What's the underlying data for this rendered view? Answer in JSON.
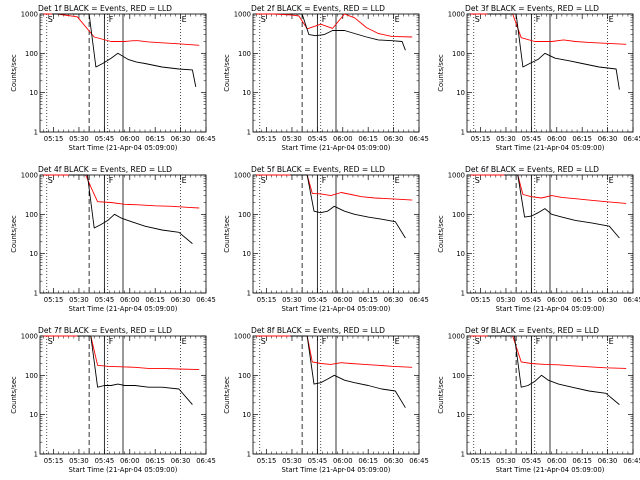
{
  "chart_data": [
    {
      "type": "line",
      "title": "Det 1f BLACK = Events, RED = LLD",
      "xlabel": "Start Time (21-Apr-04 05:09:00)",
      "ylabel": "Counts/sec",
      "x_ticks": [
        "05:15",
        "05:30",
        "05:45",
        "06:00",
        "06:15",
        "06:30",
        "06:45"
      ],
      "y_ticks": [
        "1",
        "10",
        "100",
        "1000"
      ],
      "ylim": [
        1,
        1000
      ],
      "y_scale": "log",
      "markers": [
        "S",
        "F",
        "E"
      ],
      "series": [
        {
          "name": "RED",
          "color": "#ff0000",
          "x": [
            0,
            3,
            8,
            20,
            30,
            40,
            48,
            53,
            56,
            62,
            70,
            80,
            92
          ],
          "y": [
            1000,
            1000,
            1000,
            850,
            260,
            200,
            200,
            210,
            210,
            195,
            185,
            175,
            160
          ]
        },
        {
          "name": "BLACK",
          "color": "#000000",
          "x": [
            5,
            20,
            27,
            31,
            35,
            40,
            44,
            50,
            55,
            60,
            70,
            80,
            88,
            90
          ],
          "y": [
            1000,
            1000,
            1000,
            45,
            55,
            75,
            100,
            70,
            60,
            55,
            45,
            40,
            38,
            14
          ]
        }
      ]
    },
    {
      "type": "line",
      "title": "Det 2f BLACK = Events, RED = LLD",
      "xlabel": "Start Time (21-Apr-04 05:09:00)",
      "ylabel": "Counts/sec",
      "x_ticks": [
        "05:15",
        "05:30",
        "05:45",
        "06:00",
        "06:15",
        "06:30",
        "06:45"
      ],
      "y_ticks": [
        "1",
        "10",
        "100",
        "1000"
      ],
      "ylim": [
        1,
        1000
      ],
      "y_scale": "log",
      "markers": [
        "S",
        "F",
        "E"
      ],
      "series": [
        {
          "name": "RED",
          "color": "#ff0000",
          "x": [
            0,
            10,
            20,
            25,
            30,
            38,
            45,
            52,
            58,
            65,
            72,
            80,
            92
          ],
          "y": [
            1000,
            1000,
            950,
            900,
            420,
            550,
            430,
            1000,
            800,
            450,
            320,
            270,
            260
          ]
        },
        {
          "name": "BLACK",
          "color": "#000000",
          "x": [
            20,
            27,
            31,
            35,
            40,
            45,
            52,
            58,
            65,
            72,
            80,
            86,
            88
          ],
          "y": [
            1000,
            1000,
            300,
            280,
            300,
            380,
            380,
            320,
            260,
            220,
            210,
            200,
            120
          ]
        }
      ]
    },
    {
      "type": "line",
      "title": "Det 3f BLACK = Events, RED = LLD",
      "xlabel": "Start Time (21-Apr-04 05:09:00)",
      "ylabel": "Counts/sec",
      "x_ticks": [
        "05:15",
        "05:30",
        "05:45",
        "06:00",
        "06:15",
        "06:30",
        "06:45"
      ],
      "y_ticks": [
        "1",
        "10",
        "100",
        "1000"
      ],
      "ylim": [
        1,
        1000
      ],
      "y_scale": "log",
      "markers": [
        "S",
        "F",
        "E"
      ],
      "series": [
        {
          "name": "RED",
          "color": "#ff0000",
          "x": [
            0,
            20,
            25,
            30,
            38,
            48,
            55,
            62,
            70,
            80,
            92
          ],
          "y": [
            1000,
            1000,
            1000,
            250,
            200,
            200,
            220,
            200,
            190,
            180,
            170
          ]
        },
        {
          "name": "BLACK",
          "color": "#000000",
          "x": [
            10,
            27,
            31,
            35,
            40,
            44,
            50,
            58,
            66,
            76,
            86,
            88
          ],
          "y": [
            1000,
            1000,
            45,
            55,
            70,
            100,
            75,
            65,
            55,
            45,
            40,
            12
          ]
        }
      ]
    },
    {
      "type": "line",
      "title": "Det 4f BLACK = Events, RED = LLD",
      "xlabel": "Start Time (21-Apr-04 05:09:00)",
      "ylabel": "Counts/sec",
      "x_ticks": [
        "05:15",
        "05:30",
        "05:45",
        "06:00",
        "06:15",
        "06:30",
        "06:45"
      ],
      "y_ticks": [
        "1",
        "10",
        "100",
        "1000"
      ],
      "ylim": [
        1,
        1000
      ],
      "y_scale": "log",
      "markers": [
        "S",
        "F",
        "E"
      ],
      "series": [
        {
          "name": "RED",
          "color": "#ff0000",
          "x": [
            0,
            20,
            25,
            29,
            32,
            40,
            48,
            56,
            66,
            76,
            86,
            92
          ],
          "y": [
            1000,
            1000,
            1000,
            400,
            210,
            200,
            180,
            175,
            165,
            160,
            150,
            145
          ]
        },
        {
          "name": "BLACK",
          "color": "#000000",
          "x": [
            15,
            26,
            30,
            34,
            38,
            42,
            46,
            52,
            60,
            70,
            80,
            88
          ],
          "y": [
            1000,
            1000,
            45,
            55,
            70,
            100,
            80,
            65,
            50,
            40,
            35,
            18
          ]
        }
      ]
    },
    {
      "type": "line",
      "title": "Det 5f BLACK = Events, RED = LLD",
      "xlabel": "Start Time (21-Apr-04 05:09:00)",
      "ylabel": "Counts/sec",
      "x_ticks": [
        "05:15",
        "05:30",
        "05:45",
        "06:00",
        "06:15",
        "06:30",
        "06:45"
      ],
      "y_ticks": [
        "1",
        "10",
        "100",
        "1000"
      ],
      "ylim": [
        1,
        1000
      ],
      "y_scale": "log",
      "markers": [
        "S",
        "F",
        "E"
      ],
      "series": [
        {
          "name": "RED",
          "color": "#ff0000",
          "x": [
            0,
            20,
            30,
            33,
            38,
            44,
            50,
            56,
            62,
            70,
            78,
            86,
            92
          ],
          "y": [
            1000,
            1000,
            1000,
            340,
            330,
            300,
            360,
            320,
            280,
            260,
            250,
            240,
            230
          ]
        },
        {
          "name": "BLACK",
          "color": "#000000",
          "x": [
            20,
            30,
            34,
            38,
            42,
            46,
            52,
            58,
            66,
            74,
            82,
            88
          ],
          "y": [
            1000,
            1000,
            120,
            110,
            120,
            160,
            120,
            100,
            85,
            75,
            65,
            25
          ]
        }
      ]
    },
    {
      "type": "line",
      "title": "Det 6f BLACK = Events, RED = LLD",
      "xlabel": "Start Time (21-Apr-04 05:09:00)",
      "ylabel": "Counts/sec",
      "x_ticks": [
        "05:15",
        "05:30",
        "05:45",
        "06:00",
        "06:15",
        "06:30",
        "06:45"
      ],
      "y_ticks": [
        "1",
        "10",
        "100",
        "1000"
      ],
      "ylim": [
        1,
        1000
      ],
      "y_scale": "log",
      "markers": [
        "S",
        "F",
        "E"
      ],
      "series": [
        {
          "name": "RED",
          "color": "#ff0000",
          "x": [
            0,
            20,
            28,
            31,
            36,
            42,
            48,
            54,
            62,
            70,
            80,
            92
          ],
          "y": [
            1000,
            1000,
            1000,
            320,
            280,
            260,
            300,
            270,
            250,
            230,
            210,
            190
          ]
        },
        {
          "name": "BLACK",
          "color": "#000000",
          "x": [
            20,
            28,
            32,
            36,
            40,
            44,
            48,
            54,
            62,
            72,
            82,
            88
          ],
          "y": [
            1000,
            1000,
            85,
            90,
            110,
            140,
            100,
            85,
            70,
            60,
            50,
            25
          ]
        }
      ]
    },
    {
      "type": "line",
      "title": "Det 7f BLACK = Events, RED = LLD",
      "xlabel": "Start Time (21-Apr-04 05:09:00)",
      "ylabel": "Counts/sec",
      "x_ticks": [
        "05:15",
        "05:30",
        "05:45",
        "06:00",
        "06:15",
        "06:30",
        "06:45"
      ],
      "y_ticks": [
        "1",
        "10",
        "100",
        "1000"
      ],
      "ylim": [
        1,
        1000
      ],
      "y_scale": "log",
      "markers": [
        "S",
        "F",
        "E"
      ],
      "series": [
        {
          "name": "RED",
          "color": "#ff0000",
          "x": [
            0,
            22,
            28,
            32,
            38,
            46,
            54,
            62,
            70,
            80,
            92
          ],
          "y": [
            1000,
            1000,
            1000,
            180,
            170,
            165,
            160,
            150,
            150,
            145,
            140
          ]
        },
        {
          "name": "BLACK",
          "color": "#000000",
          "x": [
            20,
            28,
            32,
            36,
            40,
            44,
            48,
            54,
            62,
            70,
            80,
            88
          ],
          "y": [
            1000,
            1000,
            50,
            55,
            55,
            60,
            55,
            55,
            50,
            50,
            45,
            18
          ]
        }
      ]
    },
    {
      "type": "line",
      "title": "Det 8f BLACK = Events, RED = LLD",
      "xlabel": "Start Time (21-Apr-04 05:09:00)",
      "ylabel": "Counts/sec",
      "x_ticks": [
        "05:15",
        "05:30",
        "05:45",
        "06:00",
        "06:15",
        "06:30",
        "06:45"
      ],
      "y_ticks": [
        "1",
        "10",
        "100",
        "1000"
      ],
      "ylim": [
        1,
        1000
      ],
      "y_scale": "log",
      "markers": [
        "S",
        "F",
        "E"
      ],
      "series": [
        {
          "name": "RED",
          "color": "#ff0000",
          "x": [
            0,
            20,
            30,
            33,
            38,
            44,
            50,
            56,
            64,
            72,
            80,
            92
          ],
          "y": [
            1000,
            1000,
            1000,
            220,
            200,
            190,
            210,
            200,
            190,
            180,
            170,
            160
          ]
        },
        {
          "name": "BLACK",
          "color": "#000000",
          "x": [
            20,
            30,
            34,
            38,
            42,
            46,
            52,
            58,
            66,
            74,
            82,
            88
          ],
          "y": [
            1000,
            1000,
            60,
            65,
            80,
            100,
            75,
            65,
            55,
            45,
            40,
            15
          ]
        }
      ]
    },
    {
      "type": "line",
      "title": "Det 9f BLACK = Events, RED = LLD",
      "xlabel": "Start Time (21-Apr-04 05:09:00)",
      "ylabel": "Counts/sec",
      "x_ticks": [
        "05:15",
        "05:30",
        "05:45",
        "06:00",
        "06:15",
        "06:30",
        "06:45"
      ],
      "y_ticks": [
        "1",
        "10",
        "100",
        "1000"
      ],
      "ylim": [
        1,
        1000
      ],
      "y_scale": "log",
      "markers": [
        "S",
        "F",
        "E"
      ],
      "series": [
        {
          "name": "RED",
          "color": "#ff0000",
          "x": [
            0,
            20,
            25,
            30,
            36,
            44,
            52,
            60,
            70,
            80,
            92
          ],
          "y": [
            1000,
            1000,
            1000,
            220,
            200,
            190,
            185,
            175,
            165,
            155,
            150
          ]
        },
        {
          "name": "BLACK",
          "color": "#000000",
          "x": [
            10,
            26,
            30,
            34,
            38,
            42,
            46,
            52,
            60,
            70,
            80,
            88
          ],
          "y": [
            1000,
            1000,
            50,
            55,
            70,
            100,
            75,
            60,
            50,
            40,
            35,
            18
          ]
        }
      ]
    }
  ]
}
